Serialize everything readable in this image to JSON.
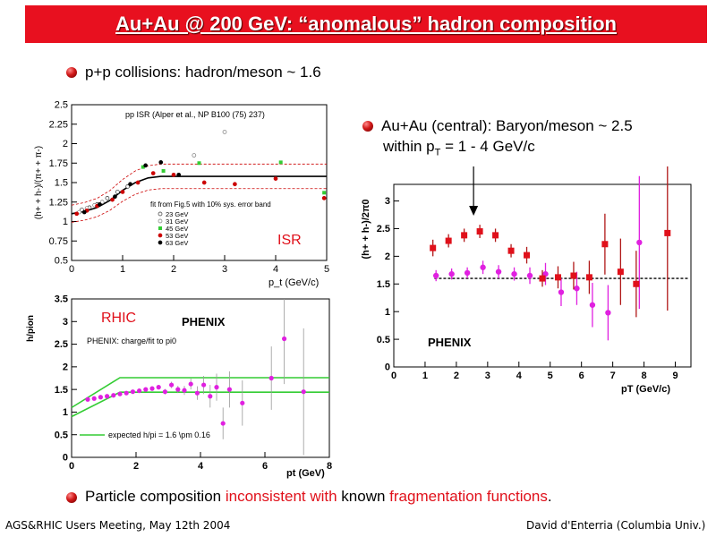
{
  "slide": {
    "title": "Au+Au @ 200 GeV: “anomalous” hadron composition",
    "bullet1": "p+p collisions: hadron/meson ~ 1.6",
    "bullet2_line1": "Au+Au (central): Baryon/meson ~ 2.5",
    "bullet2_line2_pre": "within p",
    "bullet2_line2_sub": "T",
    "bullet2_line2_post": " = 1 - 4 GeV/c",
    "bullet3": {
      "part1": "Particle composition ",
      "part2": "inconsistent with",
      "part3": " known ",
      "part4": "fragmentation functions",
      "part5": "."
    },
    "footer_left": "AGS&RHIC Users Meeting, May 12th 2004",
    "footer_right": "David d'Enterria (Columbia Univ.)"
  },
  "colors": {
    "title_bg": "#e8101f",
    "accent_red": "#e0101a",
    "magenta": "#e020e0",
    "green": "#33cc33"
  },
  "chart_data": [
    {
      "type": "scatter",
      "name": "isr",
      "title": "pp ISR (Alper et al., NP B100 (75) 237)",
      "ylabel": "(h+ + h-)/(π+ + π-)",
      "xlabel": "p_t (GeV/c)",
      "xlim": [
        0,
        5
      ],
      "ylim": [
        0.5,
        2.5
      ],
      "xticks": [
        "0",
        "1",
        "2",
        "3",
        "4",
        "5"
      ],
      "yticks": [
        "0.5",
        "0.75",
        "1",
        "1.25",
        "1.5",
        "1.75",
        "2",
        "2.25",
        "2.5"
      ],
      "annotation_fit": "fit from Fig.5 with 10% sys. error band",
      "tag": "ISR",
      "legend": [
        "23 GeV",
        "31 GeV",
        "45 GeV",
        "53 GeV",
        "63 GeV"
      ],
      "fit_curve": {
        "x": [
          0,
          0.25,
          0.5,
          0.75,
          1,
          1.25,
          1.5,
          1.75,
          2,
          5
        ],
        "y": [
          1.1,
          1.13,
          1.18,
          1.27,
          1.4,
          1.5,
          1.56,
          1.58,
          1.58,
          1.58
        ]
      },
      "band": 0.1,
      "series": [
        {
          "key": "23 GeV",
          "x": [
            0.2,
            0.35,
            0.5,
            0.7,
            0.9,
            1.1
          ],
          "y": [
            1.15,
            1.18,
            1.22,
            1.3,
            1.38,
            1.45
          ]
        },
        {
          "key": "31 GeV",
          "x": [
            0.15,
            0.3,
            0.45,
            0.6,
            2.4,
            3.0
          ],
          "y": [
            1.12,
            1.17,
            1.21,
            1.25,
            1.85,
            2.15
          ]
        },
        {
          "key": "45 GeV",
          "x": [
            1.4,
            1.8,
            2.5,
            4.1,
            4.95
          ],
          "y": [
            1.7,
            1.65,
            1.75,
            1.76,
            1.37
          ]
        },
        {
          "key": "53 GeV",
          "x": [
            0.1,
            0.3,
            0.5,
            0.8,
            1.0,
            1.3,
            1.6,
            2.0,
            2.6,
            3.2,
            4.0,
            4.95
          ],
          "y": [
            1.1,
            1.14,
            1.2,
            1.28,
            1.38,
            1.5,
            1.62,
            1.6,
            1.5,
            1.48,
            1.55,
            1.3
          ]
        },
        {
          "key": "63 GeV",
          "x": [
            0.25,
            0.55,
            0.85,
            1.15,
            1.45,
            1.75,
            2.1
          ],
          "y": [
            1.12,
            1.22,
            1.32,
            1.48,
            1.72,
            1.76,
            1.6
          ]
        }
      ]
    },
    {
      "type": "scatter",
      "name": "rhic",
      "ylabel": "h/pion",
      "xlabel": "pt (GeV)",
      "xlim": [
        0,
        8
      ],
      "ylim": [
        0,
        3.5
      ],
      "xticks": [
        "0",
        "2",
        "4",
        "6",
        "8"
      ],
      "yticks": [
        "0",
        "0.5",
        "1",
        "1.5",
        "2",
        "2.5",
        "3",
        "3.5"
      ],
      "tag": "RHIC",
      "logo": "PHENIX",
      "annotation": "PHENIX: charge/fit to pi0",
      "legend_line": "expected h/pi = 1.6 \\pm 0.16",
      "band_upper": {
        "x": [
          0,
          1.5,
          8
        ],
        "y": [
          1.1,
          1.76,
          1.76
        ]
      },
      "band_lower": {
        "x": [
          0,
          1.5,
          8
        ],
        "y": [
          0.9,
          1.44,
          1.44
        ]
      },
      "x": [
        0.5,
        0.7,
        0.9,
        1.1,
        1.3,
        1.5,
        1.7,
        1.9,
        2.1,
        2.3,
        2.5,
        2.7,
        2.9,
        3.1,
        3.3,
        3.5,
        3.7,
        3.9,
        4.1,
        4.3,
        4.5,
        4.7,
        4.9,
        5.3,
        6.2,
        6.6,
        7.2
      ],
      "y": [
        1.28,
        1.3,
        1.33,
        1.35,
        1.37,
        1.4,
        1.42,
        1.45,
        1.47,
        1.5,
        1.52,
        1.55,
        1.45,
        1.6,
        1.5,
        1.48,
        1.62,
        1.42,
        1.6,
        1.35,
        1.55,
        0.75,
        1.5,
        1.2,
        1.75,
        2.62,
        1.45
      ],
      "err": [
        0.02,
        0.02,
        0.02,
        0.02,
        0.02,
        0.03,
        0.03,
        0.03,
        0.04,
        0.04,
        0.05,
        0.05,
        0.06,
        0.07,
        0.08,
        0.1,
        0.12,
        0.15,
        0.2,
        0.25,
        0.3,
        0.35,
        0.4,
        0.5,
        0.7,
        1.0,
        1.4
      ]
    },
    {
      "type": "scatter",
      "name": "auau",
      "ylabel": "(h+ + h-)/2π0",
      "xlabel": "pT (GeV/c)",
      "xlim": [
        0,
        9.5
      ],
      "ylim": [
        0,
        3.3
      ],
      "xticks": [
        "0",
        "1",
        "2",
        "3",
        "4",
        "5",
        "6",
        "7",
        "8",
        "9"
      ],
      "yticks": [
        "0",
        "0.5",
        "1",
        "1.5",
        "2",
        "2.5",
        "3"
      ],
      "logo": "PHENIX",
      "reference_line": 1.6,
      "series": [
        {
          "name": "central",
          "marker": "square",
          "color": "#e0101a",
          "x": [
            1.25,
            1.75,
            2.25,
            2.75,
            3.25,
            3.75,
            4.25,
            4.75,
            5.25,
            5.75,
            6.25,
            6.75,
            7.25,
            7.75,
            8.75
          ],
          "y": [
            2.15,
            2.28,
            2.38,
            2.45,
            2.38,
            2.1,
            2.02,
            1.6,
            1.62,
            1.65,
            1.62,
            2.22,
            1.72,
            1.5,
            2.42
          ],
          "err": [
            0.15,
            0.12,
            0.12,
            0.12,
            0.12,
            0.12,
            0.15,
            0.15,
            0.2,
            0.25,
            0.3,
            0.55,
            0.6,
            0.6,
            1.4
          ]
        },
        {
          "name": "peripheral",
          "marker": "circle",
          "color": "#e020e0",
          "x": [
            1.35,
            1.85,
            2.35,
            2.85,
            3.35,
            3.85,
            4.35,
            4.85,
            5.35,
            5.85,
            6.35,
            6.85,
            7.85
          ],
          "y": [
            1.65,
            1.68,
            1.7,
            1.8,
            1.72,
            1.68,
            1.65,
            1.68,
            1.35,
            1.42,
            1.12,
            0.98,
            2.25
          ]
        },
        {
          "name": "err_peripheral",
          "values": [
            0.1,
            0.1,
            0.1,
            0.12,
            0.12,
            0.12,
            0.15,
            0.2,
            0.25,
            0.3,
            0.4,
            0.5,
            1.2
          ]
        }
      ],
      "arrow_x": 2.55
    }
  ]
}
